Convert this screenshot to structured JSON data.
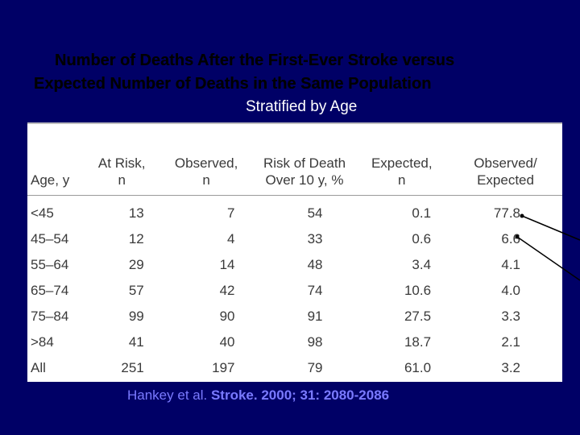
{
  "slide": {
    "title_line1": "Number of Deaths After the First-Ever Stroke versus",
    "title_line2": "Expected Number of Deaths in the Same Population",
    "title_line3": "Stratified by Age",
    "citation_authors": "Hankey et al.",
    "citation_journal": "Stroke. 2000; 31: 2080-2086"
  },
  "table": {
    "headers": [
      [
        "",
        "Age, y"
      ],
      [
        "At Risk,",
        "n"
      ],
      [
        "Observed,",
        "n"
      ],
      [
        "Risk of Death",
        "Over 10 y, %"
      ],
      [
        "Expected,",
        "n"
      ],
      [
        "Observed/",
        "Expected"
      ]
    ],
    "rows": [
      [
        "<45",
        "13",
        "7",
        "54",
        "0.1",
        "77.8"
      ],
      [
        "45–54",
        "12",
        "4",
        "33",
        "0.6",
        "6.6"
      ],
      [
        "55–64",
        "29",
        "14",
        "48",
        "3.4",
        "4.1"
      ],
      [
        "65–74",
        "57",
        "42",
        "74",
        "10.6",
        "4.0"
      ],
      [
        "75–84",
        "99",
        "90",
        "91",
        "27.5",
        "3.3"
      ],
      [
        ">84",
        "41",
        "40",
        "98",
        "18.7",
        "2.1"
      ],
      [
        "All",
        "251",
        "197",
        "79",
        "61.0",
        "3.2"
      ]
    ]
  },
  "colors": {
    "background": "#000066",
    "citation": "#7a7aff"
  }
}
